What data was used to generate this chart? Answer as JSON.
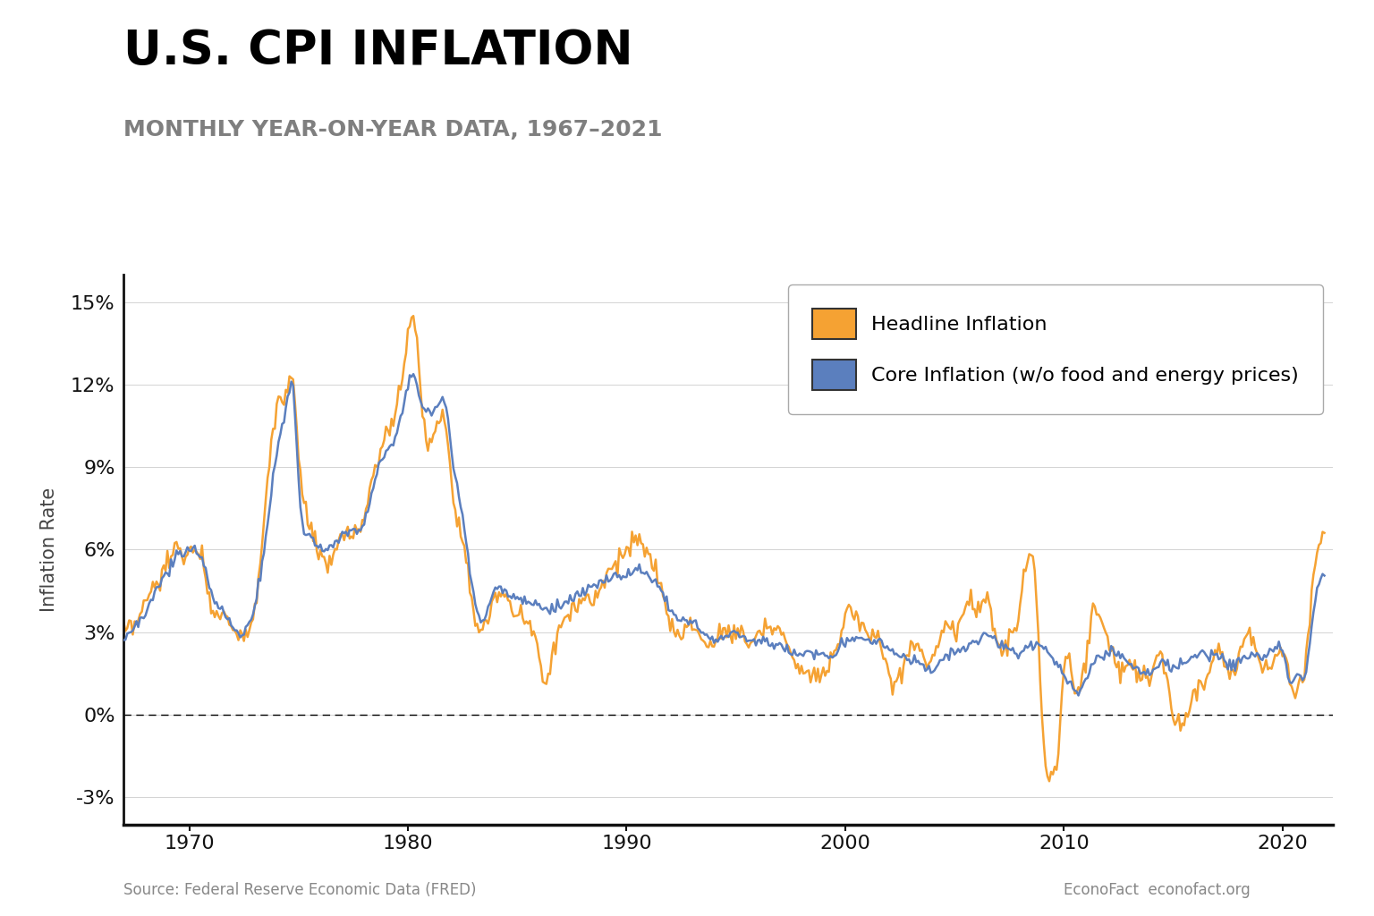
{
  "title": "U.S. CPI INFLATION",
  "subtitle": "MONTHLY YEAR-ON-YEAR DATA, 1967–2021",
  "ylabel": "Inflation Rate",
  "source_left": "Source: Federal Reserve Economic Data (FRED)",
  "source_right": "EconoFact  econofact.org",
  "headline_color": "#F5A233",
  "core_color": "#5B7FBE",
  "headline_label": "Headline Inflation",
  "core_label": "Core Inflation (w/o food and energy prices)",
  "title_color": "#000000",
  "subtitle_color": "#7F7F7F",
  "background_color": "#FFFFFF",
  "ylim": [
    -0.04,
    0.16
  ],
  "yticks": [
    -0.03,
    0.0,
    0.03,
    0.06,
    0.09,
    0.12,
    0.15
  ],
  "ytick_labels": [
    "-3%",
    "0%",
    "3%",
    "6%",
    "9%",
    "12%",
    "15%"
  ],
  "xticks": [
    1970,
    1980,
    1990,
    2000,
    2010,
    2020
  ]
}
